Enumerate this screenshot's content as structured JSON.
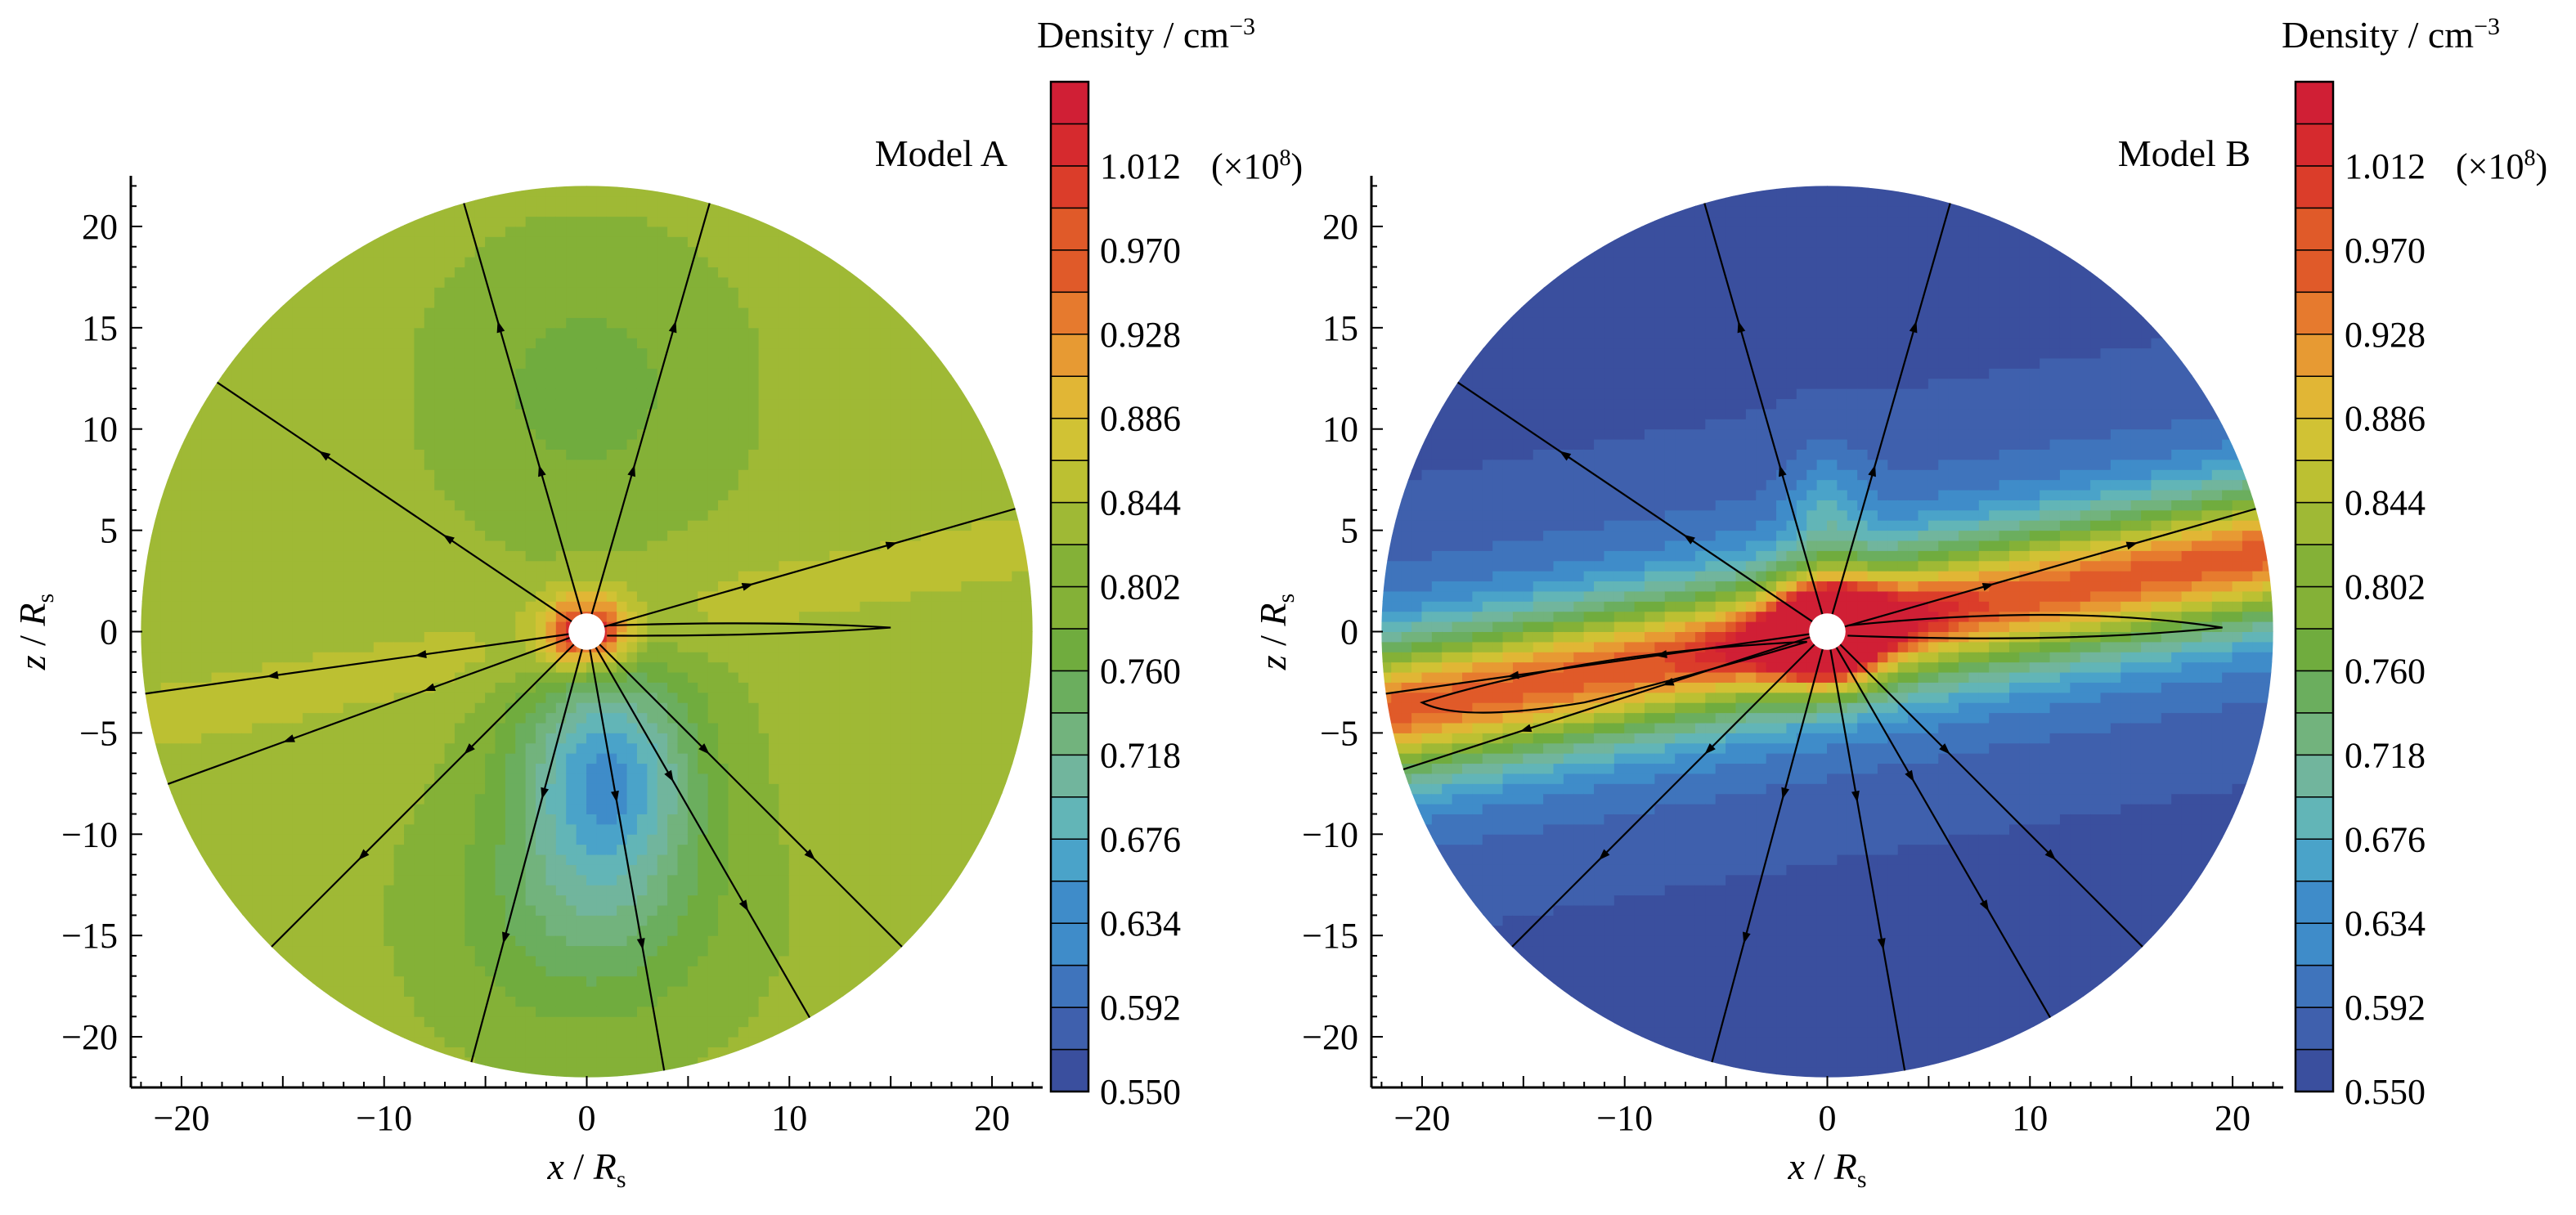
{
  "chart_data": [
    {
      "type": "heatmap",
      "model_label": "Model A",
      "xlabel_var": "x",
      "ylabel_var": "z",
      "axis_unit_base": "R",
      "axis_unit_sub": "s",
      "xticks": [
        -20,
        -10,
        0,
        10,
        20
      ],
      "yticks": [
        20,
        15,
        10,
        5,
        0,
        -5,
        -10,
        -15,
        -20
      ],
      "xlim": [
        -22.5,
        22.5
      ],
      "ylim": [
        -22.5,
        22.5
      ],
      "domain_radius": 22,
      "inner_radius": 0.9,
      "colorbar": {
        "title_text": "Density / cm",
        "title_exp": "−3",
        "ticks": [
          "1.012",
          "0.970",
          "0.928",
          "0.886",
          "0.844",
          "0.802",
          "0.760",
          "0.718",
          "0.676",
          "0.634",
          "0.592",
          "0.550"
        ],
        "multiplier": "(×10",
        "multiplier_exp": "8",
        "multiplier_close": ")",
        "min": 0.55,
        "max": 1.054,
        "levels": 24
      },
      "background_level": 0.82,
      "field_line_angles_deg": [
        106,
        74,
        146,
        16,
        200,
        188,
        315,
        255,
        280,
        300,
        225
      ],
      "closed_loop": {
        "right_extent": 15,
        "half_height": 0.4
      }
    },
    {
      "type": "heatmap",
      "model_label": "Model B",
      "xlabel_var": "x",
      "ylabel_var": "z",
      "axis_unit_base": "R",
      "axis_unit_sub": "s",
      "xticks": [
        -20,
        -10,
        0,
        10,
        20
      ],
      "yticks": [
        20,
        15,
        10,
        5,
        0,
        -5,
        -10,
        -15,
        -20
      ],
      "xlim": [
        -22.5,
        22.5
      ],
      "ylim": [
        -22.5,
        22.5
      ],
      "domain_radius": 22,
      "inner_radius": 0.9,
      "colorbar": {
        "title_text": "Density / cm",
        "title_exp": "−3",
        "ticks": [
          "1.012",
          "0.970",
          "0.928",
          "0.886",
          "0.844",
          "0.802",
          "0.760",
          "0.718",
          "0.676",
          "0.634",
          "0.592",
          "0.550"
        ],
        "multiplier": "(×10",
        "multiplier_exp": "8",
        "multiplier_close": ")",
        "min": 0.55,
        "max": 1.054,
        "levels": 24
      },
      "background_level": 0.57,
      "field_line_angles_deg": [
        106,
        74,
        146,
        16,
        198,
        188,
        315,
        255,
        280,
        300,
        225
      ],
      "closed_loop": {
        "right_extent": 19.5,
        "half_height": 1.0
      }
    }
  ],
  "colors": {
    "density_scale": [
      "#3a4f9e",
      "#3f60ad",
      "#3f74bc",
      "#3f8cc9",
      "#4aa3c9",
      "#62b5b7",
      "#71b59d",
      "#72b37d",
      "#6bae5e",
      "#70ac3e",
      "#84b137",
      "#9fb935",
      "#bcc032",
      "#d1c234",
      "#e1b635",
      "#e79a33",
      "#e67a2e",
      "#e05a29",
      "#db3d2a",
      "#d62a2e",
      "#d01f35"
    ],
    "field_line": "#000000",
    "core": "#ffffff"
  }
}
